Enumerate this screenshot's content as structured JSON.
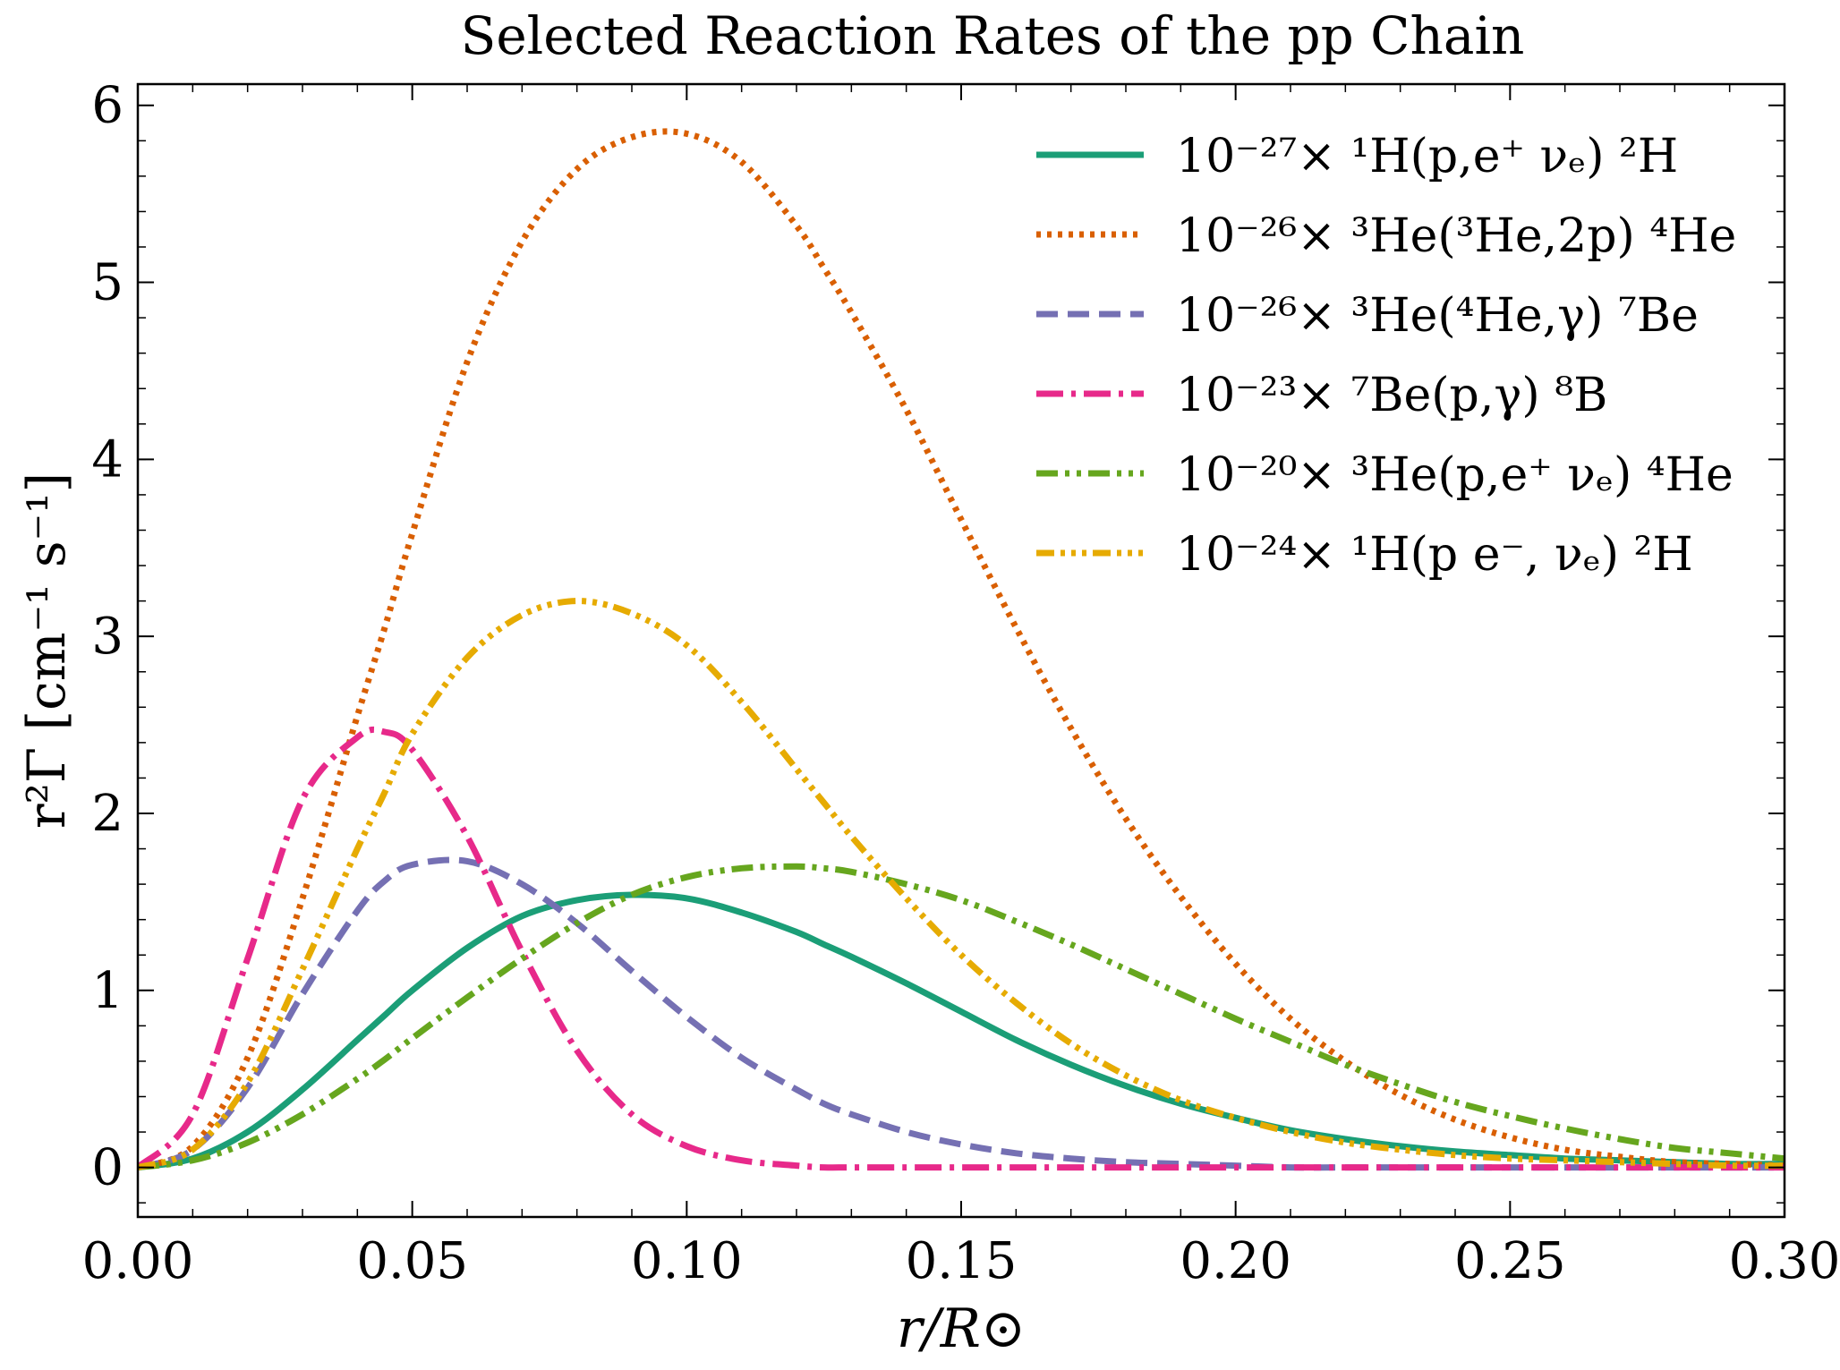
{
  "chart_data": {
    "type": "line",
    "title": "Selected Reaction Rates of the pp Chain",
    "xlabel": "r/R⊙",
    "ylabel": "r²Γ [cm⁻¹ s⁻¹]",
    "xlim": [
      0.0,
      0.3
    ],
    "ylim": [
      -0.28,
      6.12
    ],
    "x_ticks": [
      "0.00",
      "0.05",
      "0.10",
      "0.15",
      "0.20",
      "0.25",
      "0.30"
    ],
    "y_ticks": [
      "0",
      "1",
      "2",
      "3",
      "4",
      "5",
      "6"
    ],
    "grid": false,
    "legend_position": "top-right",
    "x": [
      0.0,
      0.01,
      0.02,
      0.03,
      0.04,
      0.045,
      0.05,
      0.06,
      0.07,
      0.08,
      0.09,
      0.1,
      0.11,
      0.12,
      0.125,
      0.13,
      0.14,
      0.15,
      0.16,
      0.17,
      0.18,
      0.19,
      0.2,
      0.21,
      0.22,
      0.23,
      0.24,
      0.25,
      0.26,
      0.27,
      0.28,
      0.29,
      0.3
    ],
    "series": [
      {
        "name": "10⁻²⁷× ¹H(p,e⁺ νₑ) ²H",
        "color": "#1b9e77",
        "dash": "solid",
        "values": [
          0.0,
          0.05,
          0.2,
          0.44,
          0.72,
          0.86,
          1.0,
          1.24,
          1.42,
          1.51,
          1.54,
          1.52,
          1.44,
          1.33,
          1.26,
          1.19,
          1.04,
          0.88,
          0.72,
          0.58,
          0.46,
          0.36,
          0.28,
          0.21,
          0.16,
          0.12,
          0.09,
          0.07,
          0.05,
          0.04,
          0.03,
          0.02,
          0.02
        ]
      },
      {
        "name": "10⁻²⁶× ³He(³He,2p) ⁴He",
        "color": "#d95f02",
        "dash": "dotted",
        "values": [
          0.0,
          0.12,
          0.62,
          1.52,
          2.55,
          3.05,
          3.58,
          4.55,
          5.23,
          5.64,
          5.82,
          5.84,
          5.68,
          5.32,
          5.08,
          4.83,
          4.28,
          3.66,
          3.05,
          2.48,
          1.97,
          1.53,
          1.15,
          0.84,
          0.6,
          0.41,
          0.27,
          0.17,
          0.1,
          0.06,
          0.03,
          0.02,
          0.01
        ]
      },
      {
        "name": "10⁻²⁶× ³He(⁴He,γ) ⁷Be",
        "color": "#7570b3",
        "dash": "dashed",
        "values": [
          0.0,
          0.1,
          0.45,
          0.98,
          1.45,
          1.62,
          1.71,
          1.73,
          1.6,
          1.38,
          1.11,
          0.85,
          0.62,
          0.44,
          0.36,
          0.3,
          0.2,
          0.13,
          0.08,
          0.05,
          0.03,
          0.02,
          0.01,
          0.0,
          0.0,
          0.0,
          0.0,
          0.0,
          0.0,
          0.0,
          0.0,
          0.0,
          0.0
        ]
      },
      {
        "name": "10⁻²³× ⁷Be(p,γ) ⁸B",
        "color": "#e7298a",
        "dash": "dashdot",
        "values": [
          0.0,
          0.3,
          1.18,
          2.08,
          2.43,
          2.46,
          2.36,
          1.87,
          1.22,
          0.66,
          0.3,
          0.12,
          0.04,
          0.01,
          0.0,
          0.0,
          0.0,
          0.0,
          0.0,
          0.0,
          0.0,
          0.0,
          0.0,
          0.0,
          0.0,
          0.0,
          0.0,
          0.0,
          0.0,
          0.0,
          0.0,
          0.0,
          0.0
        ]
      },
      {
        "name": "10⁻²⁰× ³He(p,e⁺ νₑ) ⁴He",
        "color": "#66a61e",
        "dash": "dashdotdot",
        "values": [
          0.0,
          0.04,
          0.14,
          0.3,
          0.5,
          0.61,
          0.73,
          0.96,
          1.18,
          1.38,
          1.54,
          1.64,
          1.69,
          1.7,
          1.69,
          1.67,
          1.6,
          1.51,
          1.39,
          1.26,
          1.12,
          0.98,
          0.84,
          0.71,
          0.58,
          0.47,
          0.37,
          0.29,
          0.22,
          0.16,
          0.11,
          0.08,
          0.05
        ]
      },
      {
        "name": "10⁻²⁴× ¹H(p e⁻, νₑ) ²H",
        "color": "#e6ab02",
        "dash": "dashdotdotdot",
        "values": [
          0.0,
          0.1,
          0.48,
          1.12,
          1.8,
          2.12,
          2.45,
          2.88,
          3.12,
          3.2,
          3.13,
          2.95,
          2.63,
          2.25,
          2.06,
          1.87,
          1.52,
          1.2,
          0.93,
          0.7,
          0.52,
          0.38,
          0.28,
          0.2,
          0.14,
          0.1,
          0.07,
          0.05,
          0.04,
          0.03,
          0.02,
          0.01,
          0.01
        ]
      }
    ]
  }
}
